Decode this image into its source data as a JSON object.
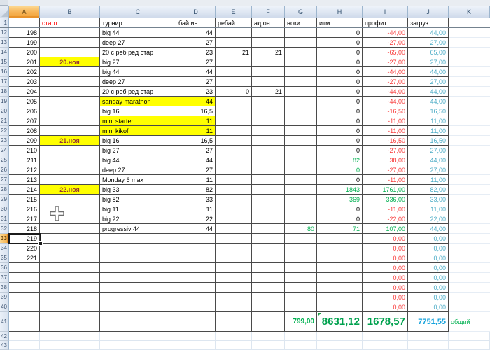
{
  "sheet": {
    "header_row_number": "1",
    "columns": [
      {
        "letter": "A",
        "header": ""
      },
      {
        "letter": "B",
        "header": "старт"
      },
      {
        "letter": "C",
        "header": "турнир"
      },
      {
        "letter": "D",
        "header": "бай ин"
      },
      {
        "letter": "E",
        "header": "ребай"
      },
      {
        "letter": "F",
        "header": "ад он"
      },
      {
        "letter": "G",
        "header": "ноки"
      },
      {
        "letter": "H",
        "header": "итм"
      },
      {
        "letter": "I",
        "header": "профит"
      },
      {
        "letter": "J",
        "header": "загруз"
      },
      {
        "letter": "K",
        "header": ""
      }
    ],
    "selected": {
      "row": "33",
      "column": "A",
      "cell": "A33"
    },
    "rows": [
      {
        "n": "12",
        "a": "198",
        "b": "",
        "c": "big 44",
        "d": "44",
        "e": "",
        "f": "",
        "g": "",
        "h": "0",
        "i": "-44,00",
        "j": "44,00"
      },
      {
        "n": "13",
        "a": "199",
        "b": "",
        "c": "deep 27",
        "d": "27",
        "e": "",
        "f": "",
        "g": "",
        "h": "0",
        "i": "-27,00",
        "j": "27,00"
      },
      {
        "n": "14",
        "a": "200",
        "b": "",
        "c": "20 с реб ред стар",
        "d": "23",
        "e": "21",
        "f": "21",
        "g": "",
        "h": "0",
        "i": "-65,00",
        "j": "65,00"
      },
      {
        "n": "15",
        "a": "201",
        "b": "20.ноя",
        "by": true,
        "c": "big 27",
        "d": "27",
        "e": "",
        "f": "",
        "g": "",
        "h": "0",
        "i": "-27,00",
        "j": "27,00"
      },
      {
        "n": "16",
        "a": "202",
        "b": "",
        "c": "big 44",
        "d": "44",
        "e": "",
        "f": "",
        "g": "",
        "h": "0",
        "i": "-44,00",
        "j": "44,00"
      },
      {
        "n": "17",
        "a": "203",
        "b": "",
        "c": "deep 27",
        "d": "27",
        "e": "",
        "f": "",
        "g": "",
        "h": "0",
        "i": "-27,00",
        "j": "27,00"
      },
      {
        "n": "18",
        "a": "204",
        "b": "",
        "c": "20 с реб ред стар",
        "d": "23",
        "e": "0",
        "f": "21",
        "g": "",
        "h": "0",
        "i": "-44,00",
        "j": "44,00"
      },
      {
        "n": "19",
        "a": "205",
        "b": "",
        "c": "sanday marathon",
        "d": "44",
        "cdy": true,
        "e": "",
        "f": "",
        "g": "",
        "h": "0",
        "i": "-44,00",
        "j": "44,00"
      },
      {
        "n": "20",
        "a": "206",
        "b": "",
        "c": "big 16",
        "d": "16,5",
        "e": "",
        "f": "",
        "g": "",
        "h": "0",
        "i": "-16,50",
        "j": "16,50"
      },
      {
        "n": "21",
        "a": "207",
        "b": "",
        "c": "mini starter",
        "d": "11",
        "cdy": true,
        "e": "",
        "f": "",
        "g": "",
        "h": "0",
        "i": "-11,00",
        "j": "11,00"
      },
      {
        "n": "22",
        "a": "208",
        "b": "",
        "c": "mini kikof",
        "d": "11",
        "cdy": true,
        "e": "",
        "f": "",
        "g": "",
        "h": "0",
        "i": "-11,00",
        "j": "11,00"
      },
      {
        "n": "23",
        "a": "209",
        "b": "21.ноя",
        "by": true,
        "c": "big 16",
        "d": "16,5",
        "e": "",
        "f": "",
        "g": "",
        "h": "0",
        "i": "-16,50",
        "j": "16,50"
      },
      {
        "n": "24",
        "a": "210",
        "b": "",
        "c": "big 27",
        "d": "27",
        "e": "",
        "f": "",
        "g": "",
        "h": "0",
        "i": "-27,00",
        "j": "27,00"
      },
      {
        "n": "25",
        "a": "211",
        "b": "",
        "c": "big 44",
        "d": "44",
        "e": "",
        "f": "",
        "g": "",
        "h": "82",
        "hg": true,
        "i": "38,00",
        "j": "44,00"
      },
      {
        "n": "26",
        "a": "212",
        "b": "",
        "c": "deep 27",
        "d": "27",
        "e": "",
        "f": "",
        "g": "",
        "h": "0",
        "hg": true,
        "i": "-27,00",
        "j": "27,00"
      },
      {
        "n": "27",
        "a": "213",
        "b": "",
        "c": "Monday 6 max",
        "d": "11",
        "e": "",
        "f": "",
        "g": "",
        "h": "0",
        "i": "-11,00",
        "j": "11,00"
      },
      {
        "n": "28",
        "a": "214",
        "b": "22.ноя",
        "by": true,
        "c": "big 33",
        "d": "82",
        "e": "",
        "f": "",
        "g": "",
        "h": "1843",
        "hg": true,
        "i": "1761,00",
        "ig": true,
        "j": "82,00"
      },
      {
        "n": "29",
        "a": "215",
        "b": "",
        "c": "big 82",
        "d": "33",
        "e": "",
        "f": "",
        "g": "",
        "h": "369",
        "hg": true,
        "i": "336,00",
        "ig": true,
        "j": "33,00"
      },
      {
        "n": "30",
        "a": "216",
        "b": "",
        "c": "big 11",
        "d": "11",
        "e": "",
        "f": "",
        "g": "",
        "h": "0",
        "i": "-11,00",
        "j": "11,00"
      },
      {
        "n": "31",
        "a": "217",
        "b": "",
        "c": "big 22",
        "d": "22",
        "e": "",
        "f": "",
        "g": "",
        "h": "0",
        "i": "-22,00",
        "j": "22,00"
      },
      {
        "n": "32",
        "a": "218",
        "b": "",
        "c": "progressiv 44",
        "d": "44",
        "e": "",
        "f": "",
        "g": "80",
        "h": "71",
        "hg": true,
        "i": "107,00",
        "ig": true,
        "j": "44,00"
      },
      {
        "n": "33",
        "a": "219",
        "b": "",
        "c": "",
        "d": "",
        "e": "",
        "f": "",
        "g": "",
        "h": "",
        "i": "0,00",
        "j": "0,00",
        "sel": true
      },
      {
        "n": "34",
        "a": "220",
        "b": "",
        "c": "",
        "d": "",
        "e": "",
        "f": "",
        "g": "",
        "h": "",
        "i": "0,00",
        "j": "0,00"
      },
      {
        "n": "35",
        "a": "221",
        "b": "",
        "c": "",
        "d": "",
        "e": "",
        "f": "",
        "g": "",
        "h": "",
        "i": "0,00",
        "j": "0,00"
      },
      {
        "n": "36",
        "a": "",
        "b": "",
        "c": "",
        "d": "",
        "e": "",
        "f": "",
        "g": "",
        "h": "",
        "i": "0,00",
        "j": "0,00"
      },
      {
        "n": "37",
        "a": "",
        "b": "",
        "c": "",
        "d": "",
        "e": "",
        "f": "",
        "g": "",
        "h": "",
        "i": "0,00",
        "j": "0,00"
      },
      {
        "n": "38",
        "a": "",
        "b": "",
        "c": "",
        "d": "",
        "e": "",
        "f": "",
        "g": "",
        "h": "",
        "i": "0,00",
        "j": "0,00"
      },
      {
        "n": "39",
        "a": "",
        "b": "",
        "c": "",
        "d": "",
        "e": "",
        "f": "",
        "g": "",
        "h": "",
        "i": "0,00",
        "j": "0,00"
      },
      {
        "n": "40",
        "a": "",
        "b": "",
        "c": "",
        "d": "",
        "e": "",
        "f": "",
        "g": "",
        "h": "",
        "i": "0,00",
        "j": "0,00"
      }
    ],
    "totals_row": {
      "n": "41",
      "g": "799,00",
      "h": "8631,12",
      "i": "1678,57",
      "j": "7751,55",
      "k": "общий",
      "h_has_error_indicator": true
    },
    "trailing_row_numbers": [
      "42",
      "43"
    ],
    "colors": {
      "negative_value": "#f83a3a",
      "positive_value": "#00b050",
      "load_value": "#4bacc6",
      "load_total": "#18a3dc",
      "date_text": "#963634",
      "header_start_text": "#fe0000",
      "highlight_fill": "#ffff00",
      "selected_header_fill": "#f6b254"
    }
  }
}
